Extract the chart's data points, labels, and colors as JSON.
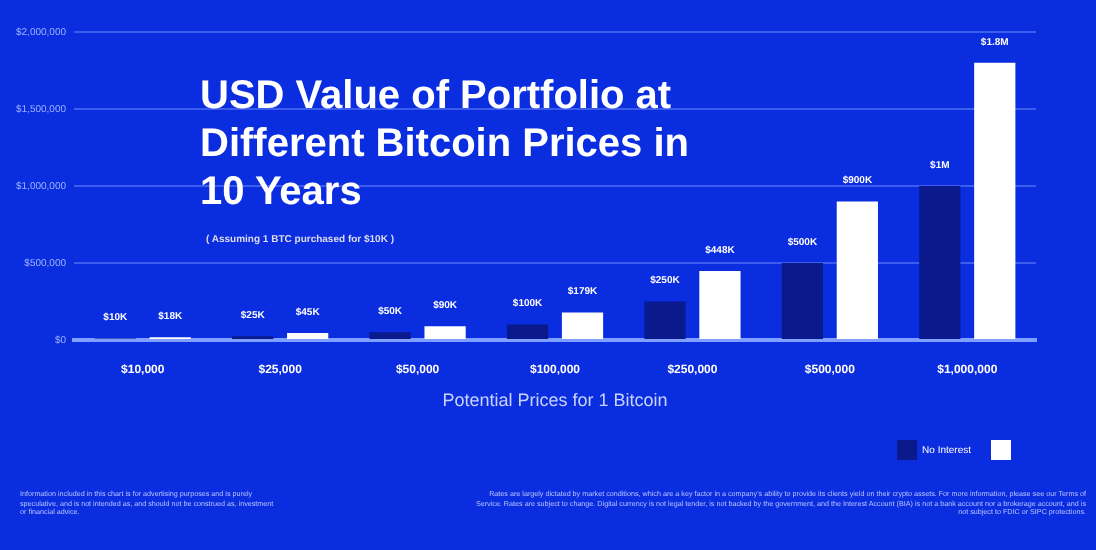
{
  "chart_data": {
    "type": "bar",
    "title": "USD Value of Portfolio at Different Bitcoin Prices in 10 Years",
    "subtitle": "( Assuming 1 BTC purchased for $10K )",
    "xlabel": "Potential Prices for 1 Bitcoin",
    "categories": [
      "$10,000",
      "$25,000",
      "$50,000",
      "$100,000",
      "$250,000",
      "$500,000",
      "$1,000,000"
    ],
    "series": [
      {
        "name": "No Interest",
        "color": "#0a1a8c",
        "values": [
          10000,
          25000,
          50000,
          100000,
          250000,
          500000,
          1000000
        ],
        "value_labels": [
          "$10K",
          "$25K",
          "$50K",
          "$100K",
          "$250K",
          "$500K",
          "$1M"
        ]
      },
      {
        "color": "#ffffff",
        "values": [
          18000,
          45000,
          90000,
          179000,
          448000,
          900000,
          1800000
        ],
        "value_labels": [
          "$18K",
          "$45K",
          "$90K",
          "$179K",
          "$448K",
          "$900K",
          "$1.8M"
        ]
      }
    ],
    "ylim": [
      0,
      2000000
    ],
    "yticks": [
      {
        "value": 0,
        "label": "$0"
      },
      {
        "value": 500000,
        "label": "$500,000"
      },
      {
        "value": 1000000,
        "label": "$1,000,000"
      },
      {
        "value": 1500000,
        "label": "$1,500,000"
      },
      {
        "value": 2000000,
        "label": "$2,000,000"
      }
    ],
    "grid": "y",
    "legend": "bottom right",
    "annotations": [
      "Information included in this chart is for advertising purposes and is purely speculative, and is not intended as, and should not be construed as, investment or financial advice.",
      "Rates are largely dictated by market conditions, which are a key factor in a company's ability to provide its clients yield on their crypto assets. For more information, please see our Terms of Service. Rates are subject to change. Digital currency is not legal tender, is not backed by the government, and the Interest Account (BIA) is not a bank account nor a brokerage account, and is not subject to FDIC or SIPC protections."
    ]
  }
}
